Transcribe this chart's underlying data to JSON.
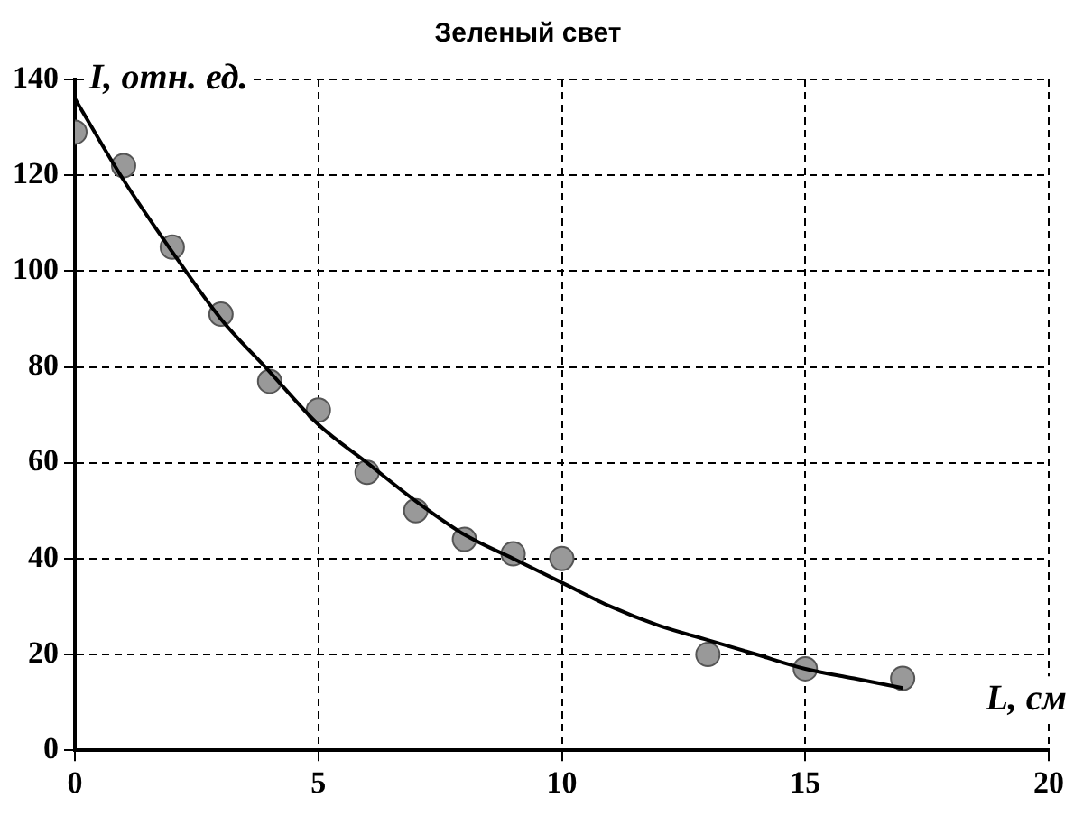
{
  "chart_data": {
    "type": "scatter",
    "title": "Зеленый свет",
    "xlabel": "L, см",
    "ylabel": "I, отн. ед.",
    "xlim": [
      0,
      20
    ],
    "xticks": [
      0,
      5,
      10,
      15,
      20
    ],
    "ylim": [
      0,
      140
    ],
    "yticks": [
      0,
      20,
      40,
      60,
      80,
      100,
      120,
      140
    ],
    "grid": true,
    "series": [
      {
        "type": "scatter",
        "color": "#999999",
        "marker": "circle",
        "x": [
          0,
          1,
          2,
          3,
          4,
          5,
          6,
          7,
          8,
          9,
          10,
          13,
          15,
          17
        ],
        "values": [
          129,
          122,
          105,
          91,
          77,
          71,
          58,
          50,
          44,
          41,
          40,
          20,
          17,
          15
        ]
      },
      {
        "type": "line",
        "color": "#000000",
        "marker": "none",
        "x": [
          0,
          1,
          2,
          3,
          4,
          5,
          6,
          7,
          8,
          9,
          10,
          11,
          12,
          13,
          14,
          15,
          16,
          17
        ],
        "values": [
          136,
          119,
          104,
          90,
          79,
          68,
          60,
          52,
          45,
          40,
          35,
          30,
          26,
          23,
          20,
          17,
          15,
          13
        ]
      }
    ]
  }
}
